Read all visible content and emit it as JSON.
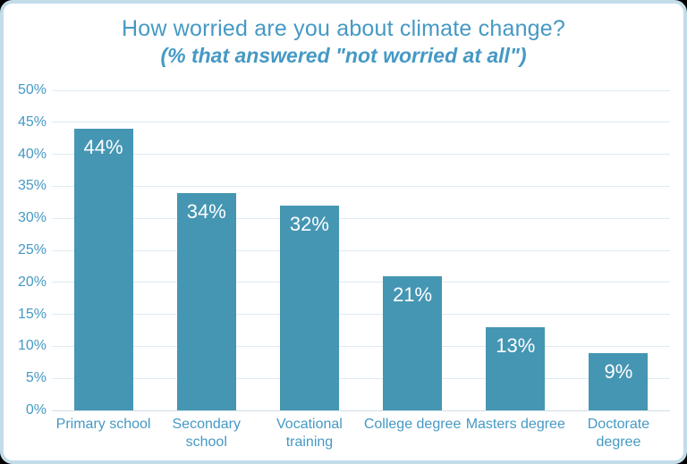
{
  "chart_data": {
    "type": "bar",
    "title": "How worried are you about climate change?",
    "subtitle": "(% that answered \"not worried at all\")",
    "categories": [
      "Primary school",
      "Secondary school",
      "Vocational training",
      "College degree",
      "Masters degree",
      "Doctorate degree"
    ],
    "x_tick_labels": [
      "Primary school",
      "Secondary school",
      "Vocational\ntraining",
      "College degree",
      "Masters degree",
      "Doctorate degree"
    ],
    "values": [
      44,
      34,
      32,
      21,
      13,
      9
    ],
    "value_labels": [
      "44%",
      "34%",
      "32%",
      "21%",
      "13%",
      "9%"
    ],
    "xlabel": "",
    "ylabel": "",
    "ylim": [
      0,
      50
    ],
    "y_tick_step": 5,
    "y_tick_labels": [
      "0%",
      "5%",
      "10%",
      "15%",
      "20%",
      "25%",
      "30%",
      "35%",
      "40%",
      "45%",
      "50%"
    ],
    "grid": true,
    "legend": "none",
    "colors": {
      "bar": "#4596b3",
      "bar_value_text": "#ffffff",
      "title_text": "#4599c4",
      "axis_text": "#4599c4",
      "gridline": "#dcebf4",
      "baseline": "#cfdde6",
      "card_border": "#c3dcea",
      "card_background": "#ffffff"
    }
  }
}
